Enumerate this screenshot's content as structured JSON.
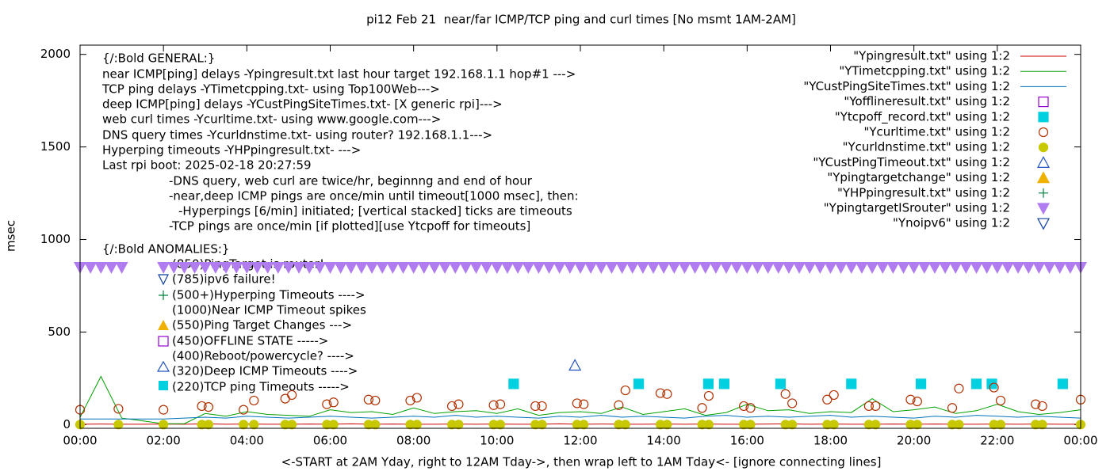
{
  "chart_data": {
    "type": "line",
    "title": "pi12 Feb 21  near/far ICMP/TCP ping and curl times [No msmt 1AM-2AM]",
    "xlabel": "<-START at 2AM Yday, right to 12AM Tday->, then wrap left to 1AM Tday<- [ignore connecting lines]",
    "ylabel": "msec",
    "xlim": [
      0,
      24
    ],
    "ylim": [
      -20,
      2050
    ],
    "xticks": [
      {
        "value": 0,
        "label": "00:00"
      },
      {
        "value": 2,
        "label": "02:00"
      },
      {
        "value": 4,
        "label": "04:00"
      },
      {
        "value": 6,
        "label": "06:00"
      },
      {
        "value": 8,
        "label": "08:00"
      },
      {
        "value": 10,
        "label": "10:00"
      },
      {
        "value": 12,
        "label": "12:00"
      },
      {
        "value": 14,
        "label": "14:00"
      },
      {
        "value": 16,
        "label": "16:00"
      },
      {
        "value": 18,
        "label": "18:00"
      },
      {
        "value": 20,
        "label": "20:00"
      },
      {
        "value": 22,
        "label": "22:00"
      },
      {
        "value": 24,
        "label": "00:00"
      }
    ],
    "yticks": [
      0,
      500,
      1000,
      1500,
      2000
    ],
    "grid": false,
    "legend": "top-right",
    "annotations": [
      "{/:Bold GENERAL:}",
      "near ICMP[ping] delays -Ypingresult.txt last hour target 192.168.1.1 hop#1 --->",
      "TCP ping delays -YTimetcpping.txt- using Top100Web--->",
      "deep ICMP[ping] delays -YCustPingSiteTimes.txt- [X generic rpi]--->",
      "web curl times -Ycurltime.txt- using www.google.com--->",
      "DNS query times -Ycurldnstime.txt- using router? 192.168.1.1--->",
      "Hyperping timeouts -YHPpingresult.txt- --->",
      "Last rpi boot: 2025-02-18 20:27:59",
      "-DNS query, web curl are twice/hr, beginnng and end of hour",
      "-near,deep ICMP pings are once/min until timeout[1000 msec], then:",
      "-Hyperpings [6/min] initiated; [vertical stacked] ticks are timeouts",
      "-TCP pings are once/min [if plotted][use Ytcpoff for timeouts]",
      "{/:Bold ANOMALIES:}",
      "(850)PingTarget is router!",
      "(785)ipv6 failure!",
      "(500+)Hyperping Timeouts ---->",
      "(1000)Near ICMP Timeout spikes",
      "(550)Ping Target Changes --->",
      "(450)OFFLINE STATE ----->",
      "(400)Reboot/powercycle? ---->",
      "(320)Deep ICMP Timeouts ---->",
      "(220)TCP ping Timeouts ----->"
    ],
    "series": [
      {
        "name": "\"Ypingresult.txt\" using 1:2",
        "color": "#cc0000",
        "marker": "line",
        "x": [
          0,
          0.5,
          1,
          1.5,
          2,
          2.5,
          3,
          3.5,
          4,
          4.5,
          5,
          5.5,
          6,
          6.5,
          7,
          7.5,
          8,
          8.5,
          9,
          9.5,
          10,
          10.5,
          11,
          11.5,
          12,
          12.5,
          13,
          13.5,
          14,
          14.5,
          15,
          15.5,
          16,
          16.5,
          17,
          17.5,
          18,
          18.5,
          19,
          19.5,
          20,
          20.5,
          21,
          21.5,
          22,
          22.5,
          23,
          23.5,
          24
        ],
        "values": [
          2,
          3,
          2,
          2,
          3,
          2,
          4,
          2,
          3,
          2,
          2,
          3,
          2,
          4,
          2,
          3,
          2,
          2,
          3,
          2,
          3,
          2,
          2,
          4,
          2,
          3,
          2,
          2,
          3,
          2,
          3,
          2,
          2,
          3,
          4,
          2,
          3,
          2,
          2,
          3,
          2,
          3,
          2,
          2,
          3,
          2,
          3,
          2,
          2
        ]
      },
      {
        "name": "\"YTimetcpping.txt\" using 1:2",
        "color": "#00a000",
        "marker": "line",
        "x": [
          0,
          0.5,
          1,
          1.5,
          2,
          2.5,
          3,
          3.5,
          4,
          4.5,
          5,
          5.5,
          6,
          6.5,
          7,
          7.5,
          8,
          8.5,
          9,
          9.5,
          10,
          10.5,
          11,
          11.5,
          12,
          12.5,
          13,
          13.5,
          14,
          14.5,
          15,
          15.5,
          16,
          16.5,
          17,
          17.5,
          18,
          18.5,
          19,
          19.5,
          20,
          20.5,
          21,
          21.5,
          22,
          22.5,
          23,
          23.5,
          24
        ],
        "values": [
          40,
          260,
          35,
          20,
          5,
          5,
          60,
          45,
          70,
          55,
          50,
          45,
          80,
          65,
          70,
          55,
          90,
          60,
          70,
          75,
          60,
          85,
          50,
          65,
          70,
          60,
          95,
          55,
          70,
          85,
          50,
          65,
          110,
          75,
          80,
          60,
          70,
          65,
          140,
          70,
          80,
          95,
          60,
          75,
          110,
          70,
          55,
          65,
          80
        ]
      },
      {
        "name": "\"YCustPingSiteTimes.txt\" using 1:2",
        "color": "#0072bd",
        "marker": "line",
        "x": [
          0,
          0.5,
          1,
          1.5,
          2,
          2.5,
          3,
          3.5,
          4,
          4.5,
          5,
          5.5,
          6,
          6.5,
          7,
          7.5,
          8,
          8.5,
          9,
          9.5,
          10,
          10.5,
          11,
          11.5,
          12,
          12.5,
          13,
          13.5,
          14,
          14.5,
          15,
          15.5,
          16,
          16.5,
          17,
          17.5,
          18,
          18.5,
          19,
          19.5,
          20,
          20.5,
          21,
          21.5,
          22,
          22.5,
          23,
          23.5,
          24
        ],
        "values": [
          30,
          30,
          30,
          30,
          30,
          35,
          40,
          35,
          45,
          40,
          35,
          40,
          45,
          40,
          35,
          40,
          45,
          40,
          50,
          40,
          45,
          40,
          35,
          45,
          40,
          50,
          40,
          45,
          40,
          35,
          45,
          50,
          40,
          45,
          40,
          45,
          50,
          40,
          45,
          40,
          35,
          45,
          40,
          50,
          45,
          40,
          45,
          40,
          35
        ]
      },
      {
        "name": "\"Yofflineresult.txt\" using 1:2",
        "color": "#9400d3",
        "marker": "square-open",
        "x": [],
        "values": []
      },
      {
        "name": "\"Ytcpoff_record.txt\" using 1:2",
        "color": "#00d0e0",
        "marker": "square",
        "x": [
          10.4,
          13.4,
          15.07,
          15.45,
          16.8,
          18.5,
          20.17,
          21.5,
          21.87,
          23.57
        ],
        "values": [
          220,
          220,
          220,
          220,
          220,
          220,
          220,
          220,
          220,
          220
        ]
      },
      {
        "name": "\"Ycurltime.txt\" using 1:2",
        "color": "#b03000",
        "marker": "circle-open",
        "x": [
          0,
          0.92,
          2,
          2.92,
          3.08,
          3.92,
          4.17,
          4.92,
          5.08,
          5.92,
          6.08,
          6.92,
          7.08,
          7.92,
          8.08,
          8.92,
          9.08,
          9.92,
          10.08,
          10.92,
          11.08,
          11.92,
          12.08,
          12.92,
          13.08,
          13.92,
          14.08,
          14.92,
          15.08,
          15.92,
          16.08,
          16.92,
          17.08,
          17.92,
          18.08,
          18.92,
          19.08,
          19.92,
          20.08,
          20.92,
          21.08,
          21.92,
          22.08,
          22.92,
          23.08,
          24
        ],
        "values": [
          80,
          85,
          80,
          100,
          95,
          80,
          130,
          140,
          160,
          110,
          120,
          135,
          130,
          130,
          145,
          100,
          110,
          105,
          110,
          100,
          100,
          115,
          110,
          105,
          185,
          170,
          165,
          90,
          155,
          100,
          90,
          165,
          115,
          135,
          160,
          100,
          100,
          135,
          125,
          90,
          195,
          200,
          130,
          110,
          100,
          135
        ]
      },
      {
        "name": "\"Ycurldnstime.txt\" using 1:2",
        "color": "#c8c800",
        "marker": "circle",
        "x": [
          0,
          0.92,
          2,
          2.92,
          3.08,
          3.92,
          4.17,
          4.92,
          5.08,
          5.92,
          6.08,
          6.92,
          7.08,
          7.92,
          8.08,
          8.92,
          9.08,
          9.92,
          10.08,
          10.92,
          11.08,
          11.92,
          12.08,
          12.92,
          13.08,
          13.92,
          14.08,
          14.92,
          15.08,
          15.92,
          16.08,
          16.92,
          17.08,
          17.92,
          18.08,
          18.92,
          19.08,
          19.92,
          20.08,
          20.92,
          21.08,
          21.92,
          22.08,
          22.92,
          23.08,
          24
        ],
        "values": [
          0,
          0,
          0,
          0,
          0,
          0,
          0,
          0,
          0,
          0,
          0,
          0,
          0,
          0,
          0,
          0,
          0,
          0,
          0,
          0,
          0,
          0,
          0,
          0,
          0,
          0,
          0,
          0,
          0,
          0,
          0,
          0,
          0,
          0,
          0,
          0,
          0,
          0,
          0,
          0,
          0,
          0,
          0,
          0,
          0,
          0
        ]
      },
      {
        "name": "\"YCustPingTimeout.txt\" using 1:2",
        "color": "#2050c0",
        "marker": "triangle-open",
        "x": [
          11.87
        ],
        "values": [
          320
        ]
      },
      {
        "name": "\"Ypingtargetchange\" using 1:2",
        "color": "#f0b000",
        "marker": "triangle",
        "x": [],
        "values": []
      },
      {
        "name": "\"YHPpingresult.txt\" using 1:2",
        "color": "#008040",
        "marker": "plus",
        "x": [],
        "values": []
      },
      {
        "name": "\"YpingtargetISrouter\" using 1:2",
        "color": "#b07cf0",
        "marker": "triangle-down",
        "x": [
          0,
          0.25,
          0.5,
          0.75,
          1,
          2,
          2.25,
          2.5,
          2.75,
          3,
          3.25,
          3.5,
          3.75,
          4,
          4.25,
          4.5,
          4.75,
          5,
          5.25,
          5.5,
          5.75,
          6,
          6.25,
          6.5,
          6.75,
          7,
          7.25,
          7.5,
          7.75,
          8,
          8.25,
          8.5,
          8.75,
          9,
          9.25,
          9.5,
          9.75,
          10,
          10.25,
          10.5,
          10.75,
          11,
          11.25,
          11.5,
          11.75,
          12,
          12.25,
          12.5,
          12.75,
          13,
          13.25,
          13.5,
          13.75,
          14,
          14.25,
          14.5,
          14.75,
          15,
          15.25,
          15.5,
          15.75,
          16,
          16.25,
          16.5,
          16.75,
          17,
          17.25,
          17.5,
          17.75,
          18,
          18.25,
          18.5,
          18.75,
          19,
          19.25,
          19.5,
          19.75,
          20,
          20.25,
          20.5,
          20.75,
          21,
          21.25,
          21.5,
          21.75,
          22,
          22.25,
          22.5,
          22.75,
          23,
          23.25,
          23.5,
          23.75,
          24
        ],
        "values": [
          850,
          850,
          850,
          850,
          850,
          850,
          850,
          850,
          850,
          850,
          850,
          850,
          850,
          850,
          850,
          850,
          850,
          850,
          850,
          850,
          850,
          850,
          850,
          850,
          850,
          850,
          850,
          850,
          850,
          850,
          850,
          850,
          850,
          850,
          850,
          850,
          850,
          850,
          850,
          850,
          850,
          850,
          850,
          850,
          850,
          850,
          850,
          850,
          850,
          850,
          850,
          850,
          850,
          850,
          850,
          850,
          850,
          850,
          850,
          850,
          850,
          850,
          850,
          850,
          850,
          850,
          850,
          850,
          850,
          850,
          850,
          850,
          850,
          850,
          850,
          850,
          850,
          850,
          850,
          850,
          850,
          850,
          850,
          850,
          850,
          850,
          850,
          850,
          850,
          850,
          850,
          850,
          850,
          850
        ]
      },
      {
        "name": "\"Ynoipv6\" using 1:2",
        "color": "#1040a0",
        "marker": "triangle-down-open",
        "x": [],
        "values": []
      }
    ]
  }
}
